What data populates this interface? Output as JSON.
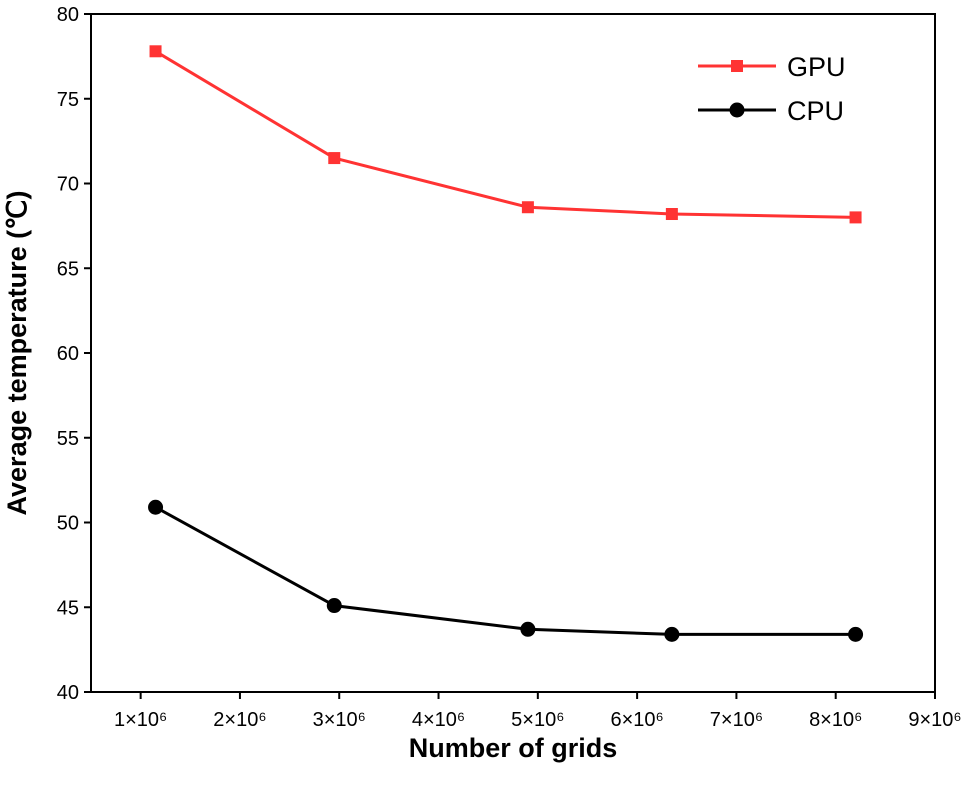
{
  "chart_data": {
    "type": "line",
    "title": "",
    "xlabel": "Number of grids",
    "ylabel": "Average temperature (℃)",
    "xlim": [
      0.5,
      9
    ],
    "ylim": [
      40,
      80
    ],
    "x_unit": 1000000,
    "x_ticks": [
      1,
      2,
      3,
      4,
      5,
      6,
      7,
      8,
      9
    ],
    "x_tick_labels": [
      "1×10⁶",
      "2×10⁶",
      "3×10⁶",
      "4×10⁶",
      "5×10⁶",
      "6×10⁶",
      "7×10⁶",
      "8×10⁶",
      "9×10⁶"
    ],
    "y_ticks": [
      40,
      45,
      50,
      55,
      60,
      65,
      70,
      75,
      80
    ],
    "y_tick_labels": [
      "40",
      "45",
      "50",
      "55",
      "60",
      "65",
      "70",
      "75",
      "80"
    ],
    "legend_position": "top-right",
    "series": [
      {
        "name": "GPU",
        "color": "#ff3333",
        "marker": "square",
        "x": [
          1.15,
          2.95,
          4.9,
          6.35,
          8.2
        ],
        "values": [
          77.8,
          71.5,
          68.6,
          68.2,
          68.0
        ]
      },
      {
        "name": "CPU",
        "color": "#000000",
        "marker": "circle",
        "x": [
          1.15,
          2.95,
          4.9,
          6.35,
          8.2
        ],
        "values": [
          50.9,
          45.1,
          43.7,
          43.4,
          43.4
        ]
      }
    ]
  }
}
